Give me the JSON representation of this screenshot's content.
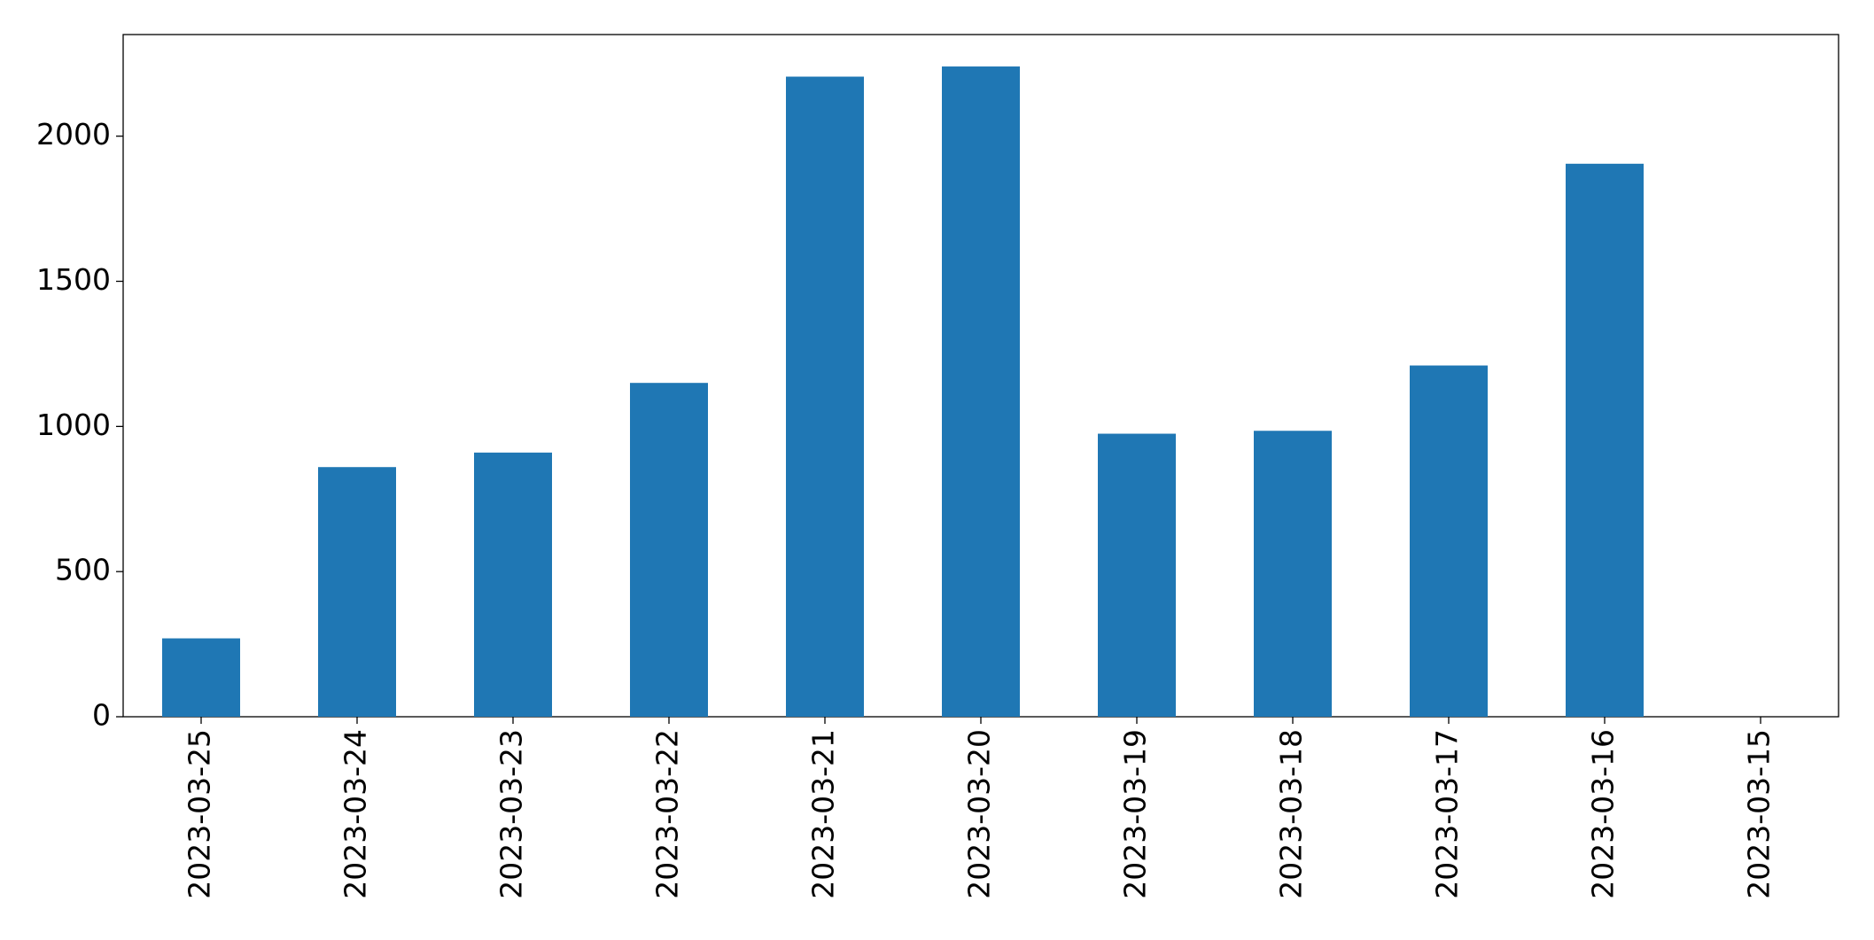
{
  "chart_data": {
    "type": "bar",
    "categories": [
      "2023-03-25",
      "2023-03-24",
      "2023-03-23",
      "2023-03-22",
      "2023-03-21",
      "2023-03-20",
      "2023-03-19",
      "2023-03-18",
      "2023-03-17",
      "2023-03-16",
      "2023-03-15"
    ],
    "values": [
      270,
      860,
      910,
      1150,
      2205,
      2240,
      975,
      985,
      1210,
      1905,
      0
    ],
    "color": "#1f77b4",
    "ylim": [
      0,
      2350
    ],
    "yticks": [
      0,
      500,
      1000,
      1500,
      2000
    ],
    "grid": false
  }
}
